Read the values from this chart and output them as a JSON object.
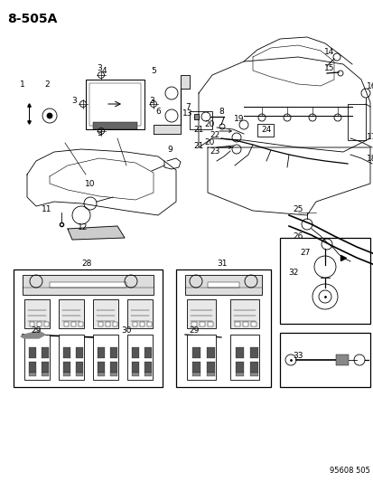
{
  "title": "8-505A",
  "footer": "95608 505",
  "bg": "#ffffff",
  "lc": "#000000",
  "fig_width": 4.14,
  "fig_height": 5.33,
  "dpi": 100,
  "title_fs": 10,
  "label_fs": 6.5,
  "footer_fs": 6.0,
  "lw": 0.6
}
